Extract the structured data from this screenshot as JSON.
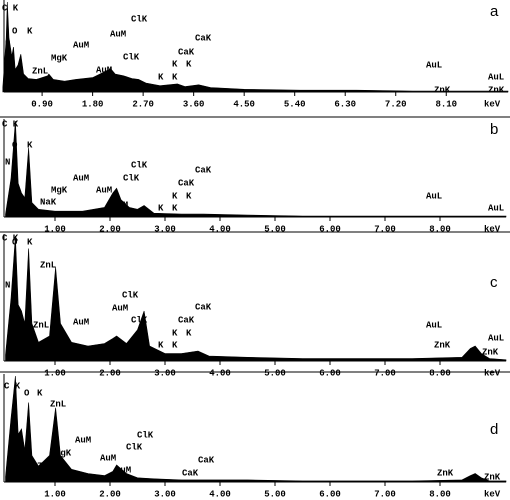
{
  "chart_data": [
    {
      "type": "area",
      "panel_label": "a",
      "xlabel": "keV",
      "color": "#000000",
      "x": [
        0.2,
        0.26,
        0.28,
        0.31,
        0.36,
        0.39,
        0.42,
        0.47,
        0.52,
        0.57,
        0.65,
        0.8,
        1.0,
        1.02,
        1.1,
        1.3,
        1.5,
        1.8,
        2.0,
        2.12,
        2.2,
        2.35,
        2.5,
        2.62,
        2.75,
        3.0,
        3.31,
        3.45,
        3.69,
        3.9,
        4.5,
        5.5,
        6.5,
        7.5,
        8.5,
        9.2
      ],
      "values": [
        5,
        60,
        100,
        60,
        40,
        50,
        25,
        30,
        42,
        20,
        15,
        14,
        18,
        20,
        14,
        12,
        14,
        16,
        22,
        26,
        20,
        18,
        15,
        14,
        10,
        7,
        9,
        6,
        8,
        5,
        3,
        2,
        2,
        1,
        1,
        1
      ],
      "xlim": [
        0.15,
        9.2
      ],
      "ylim": [
        0,
        100
      ],
      "xticks": [
        {
          "value": 0.9,
          "label": "0.90"
        },
        {
          "value": 1.8,
          "label": "1.80"
        },
        {
          "value": 2.7,
          "label": "2.70"
        },
        {
          "value": 3.6,
          "label": "3.60"
        },
        {
          "value": 4.5,
          "label": "4.50"
        },
        {
          "value": 5.4,
          "label": "5.40"
        },
        {
          "value": 6.3,
          "label": "6.30"
        },
        {
          "value": 7.2,
          "label": "7.20"
        },
        {
          "value": 8.1,
          "label": "8.10"
        }
      ],
      "annotations": [
        "C K",
        "N",
        "O",
        "K",
        "ZnL",
        "ZnL",
        "MgK",
        "AuM",
        "AuM",
        "AuM",
        "ClK",
        "ClK",
        "CaK",
        "CaK",
        "K",
        "K",
        "K",
        "K",
        "AuL",
        "ZnK",
        "AuL",
        "ZnK"
      ]
    },
    {
      "type": "area",
      "panel_label": "b",
      "xlabel": "keV",
      "color": "#000000",
      "x": [
        0.1,
        0.2,
        0.28,
        0.33,
        0.39,
        0.45,
        0.52,
        0.58,
        0.7,
        1.0,
        1.5,
        1.9,
        2.05,
        2.12,
        2.2,
        2.35,
        2.5,
        2.62,
        2.8,
        3.3,
        3.7,
        4.5,
        5.5,
        7,
        8.5,
        9.2
      ],
      "values": [
        3,
        40,
        100,
        35,
        25,
        20,
        72,
        15,
        8,
        6,
        6,
        10,
        25,
        30,
        18,
        10,
        8,
        12,
        4,
        3,
        3,
        2,
        1,
        1,
        1,
        1
      ],
      "xlim": [
        0,
        9.2
      ],
      "ylim": [
        0,
        100
      ],
      "xticks": [
        {
          "value": 1,
          "label": "1.00"
        },
        {
          "value": 2,
          "label": "2.00"
        },
        {
          "value": 3,
          "label": "3.00"
        },
        {
          "value": 4,
          "label": "4.00"
        },
        {
          "value": 5,
          "label": "5.00"
        },
        {
          "value": 6,
          "label": "6.00"
        },
        {
          "value": 7,
          "label": "7.00"
        },
        {
          "value": 8,
          "label": "8.00"
        }
      ],
      "annotations": [
        "C K",
        "N",
        "O",
        "K",
        "NaK",
        "MgK",
        "AuM",
        "AuM",
        "AuM",
        "ClK",
        "ClK",
        "CaK",
        "CaK",
        "K",
        "K",
        "K",
        "K",
        "AuL",
        "AuL"
      ]
    },
    {
      "type": "area",
      "panel_label": "c",
      "xlabel": "keV",
      "color": "#000000",
      "x": [
        0.1,
        0.2,
        0.28,
        0.33,
        0.39,
        0.45,
        0.52,
        0.58,
        0.7,
        0.9,
        1.01,
        1.1,
        1.3,
        1.6,
        1.9,
        2.05,
        2.12,
        2.3,
        2.5,
        2.62,
        2.72,
        3.0,
        3.3,
        3.6,
        3.8,
        4.5,
        5.5,
        6.5,
        7.5,
        8.4,
        8.55,
        8.64,
        8.75,
        8.9,
        9.2
      ],
      "values": [
        5,
        50,
        100,
        45,
        40,
        30,
        90,
        30,
        15,
        20,
        75,
        30,
        15,
        12,
        14,
        18,
        20,
        14,
        25,
        40,
        12,
        6,
        6,
        8,
        4,
        3,
        2,
        2,
        2,
        3,
        10,
        12,
        6,
        2,
        1
      ],
      "xlim": [
        0,
        9.2
      ],
      "ylim": [
        0,
        100
      ],
      "xticks": [
        {
          "value": 1,
          "label": "1.00"
        },
        {
          "value": 2,
          "label": "2.00"
        },
        {
          "value": 3,
          "label": "3.00"
        },
        {
          "value": 4,
          "label": "4.00"
        },
        {
          "value": 5,
          "label": "5.00"
        },
        {
          "value": 6,
          "label": "6.00"
        },
        {
          "value": 7,
          "label": "7.00"
        },
        {
          "value": 8,
          "label": "8.00"
        }
      ],
      "annotations": [
        "C K",
        "N",
        "O",
        "K",
        "ZnL",
        "ZnL",
        "AuM",
        "AuM",
        "ClK",
        "ClK",
        "CaK",
        "CaK",
        "K",
        "K",
        "K",
        "K",
        "AuL",
        "ZnK",
        "AuL",
        "ZnK"
      ]
    },
    {
      "type": "area",
      "panel_label": "d",
      "xlabel": "keV",
      "color": "#000000",
      "x": [
        0.1,
        0.2,
        0.28,
        0.33,
        0.39,
        0.45,
        0.52,
        0.58,
        0.7,
        0.9,
        1.01,
        1.1,
        1.3,
        1.6,
        1.9,
        2.05,
        2.12,
        2.3,
        2.5,
        2.8,
        3.3,
        3.7,
        4.5,
        5.5,
        6.5,
        7.5,
        8.4,
        8.55,
        8.64,
        8.75,
        8.9,
        9.2
      ],
      "values": [
        5,
        60,
        100,
        45,
        50,
        30,
        75,
        25,
        15,
        25,
        70,
        25,
        12,
        8,
        6,
        10,
        16,
        8,
        4,
        3,
        2,
        2,
        2,
        1,
        1,
        1,
        2,
        6,
        8,
        4,
        1,
        1
      ],
      "xlim": [
        0,
        9.2
      ],
      "ylim": [
        0,
        100
      ],
      "xticks": [
        {
          "value": 1,
          "label": "1.00"
        },
        {
          "value": 2,
          "label": "2.00"
        },
        {
          "value": 3,
          "label": "3.00"
        },
        {
          "value": 4,
          "label": "4.00"
        },
        {
          "value": 5,
          "label": "5.00"
        },
        {
          "value": 6,
          "label": "6.00"
        },
        {
          "value": 7,
          "label": "7.00"
        },
        {
          "value": 8,
          "label": "8.00"
        }
      ],
      "annotations": [
        "C K",
        "O",
        "K",
        "ZnL",
        "AuM",
        "MgK",
        "ClK",
        "ClK",
        "ZnL",
        "AuM",
        "AuM",
        "CaK",
        "CaK",
        "ZnK",
        "ZnK"
      ]
    }
  ]
}
